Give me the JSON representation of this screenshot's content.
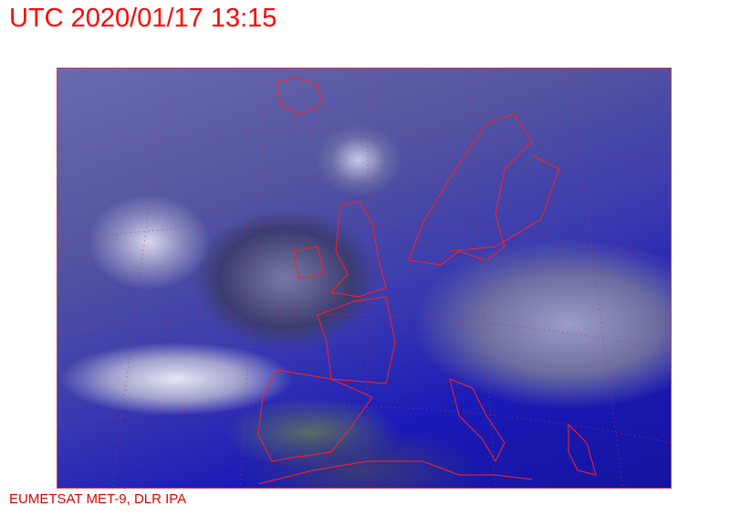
{
  "header": {
    "title": "UTC 2020/01/17 13:15"
  },
  "footer": {
    "credit": "EUMETSAT MET-9, DLR IPA"
  },
  "map": {
    "type": "satellite-image",
    "region": "Europe and North Atlantic",
    "overlay_color": "#ff0000",
    "grid": "dotted lat/lon graticule"
  }
}
